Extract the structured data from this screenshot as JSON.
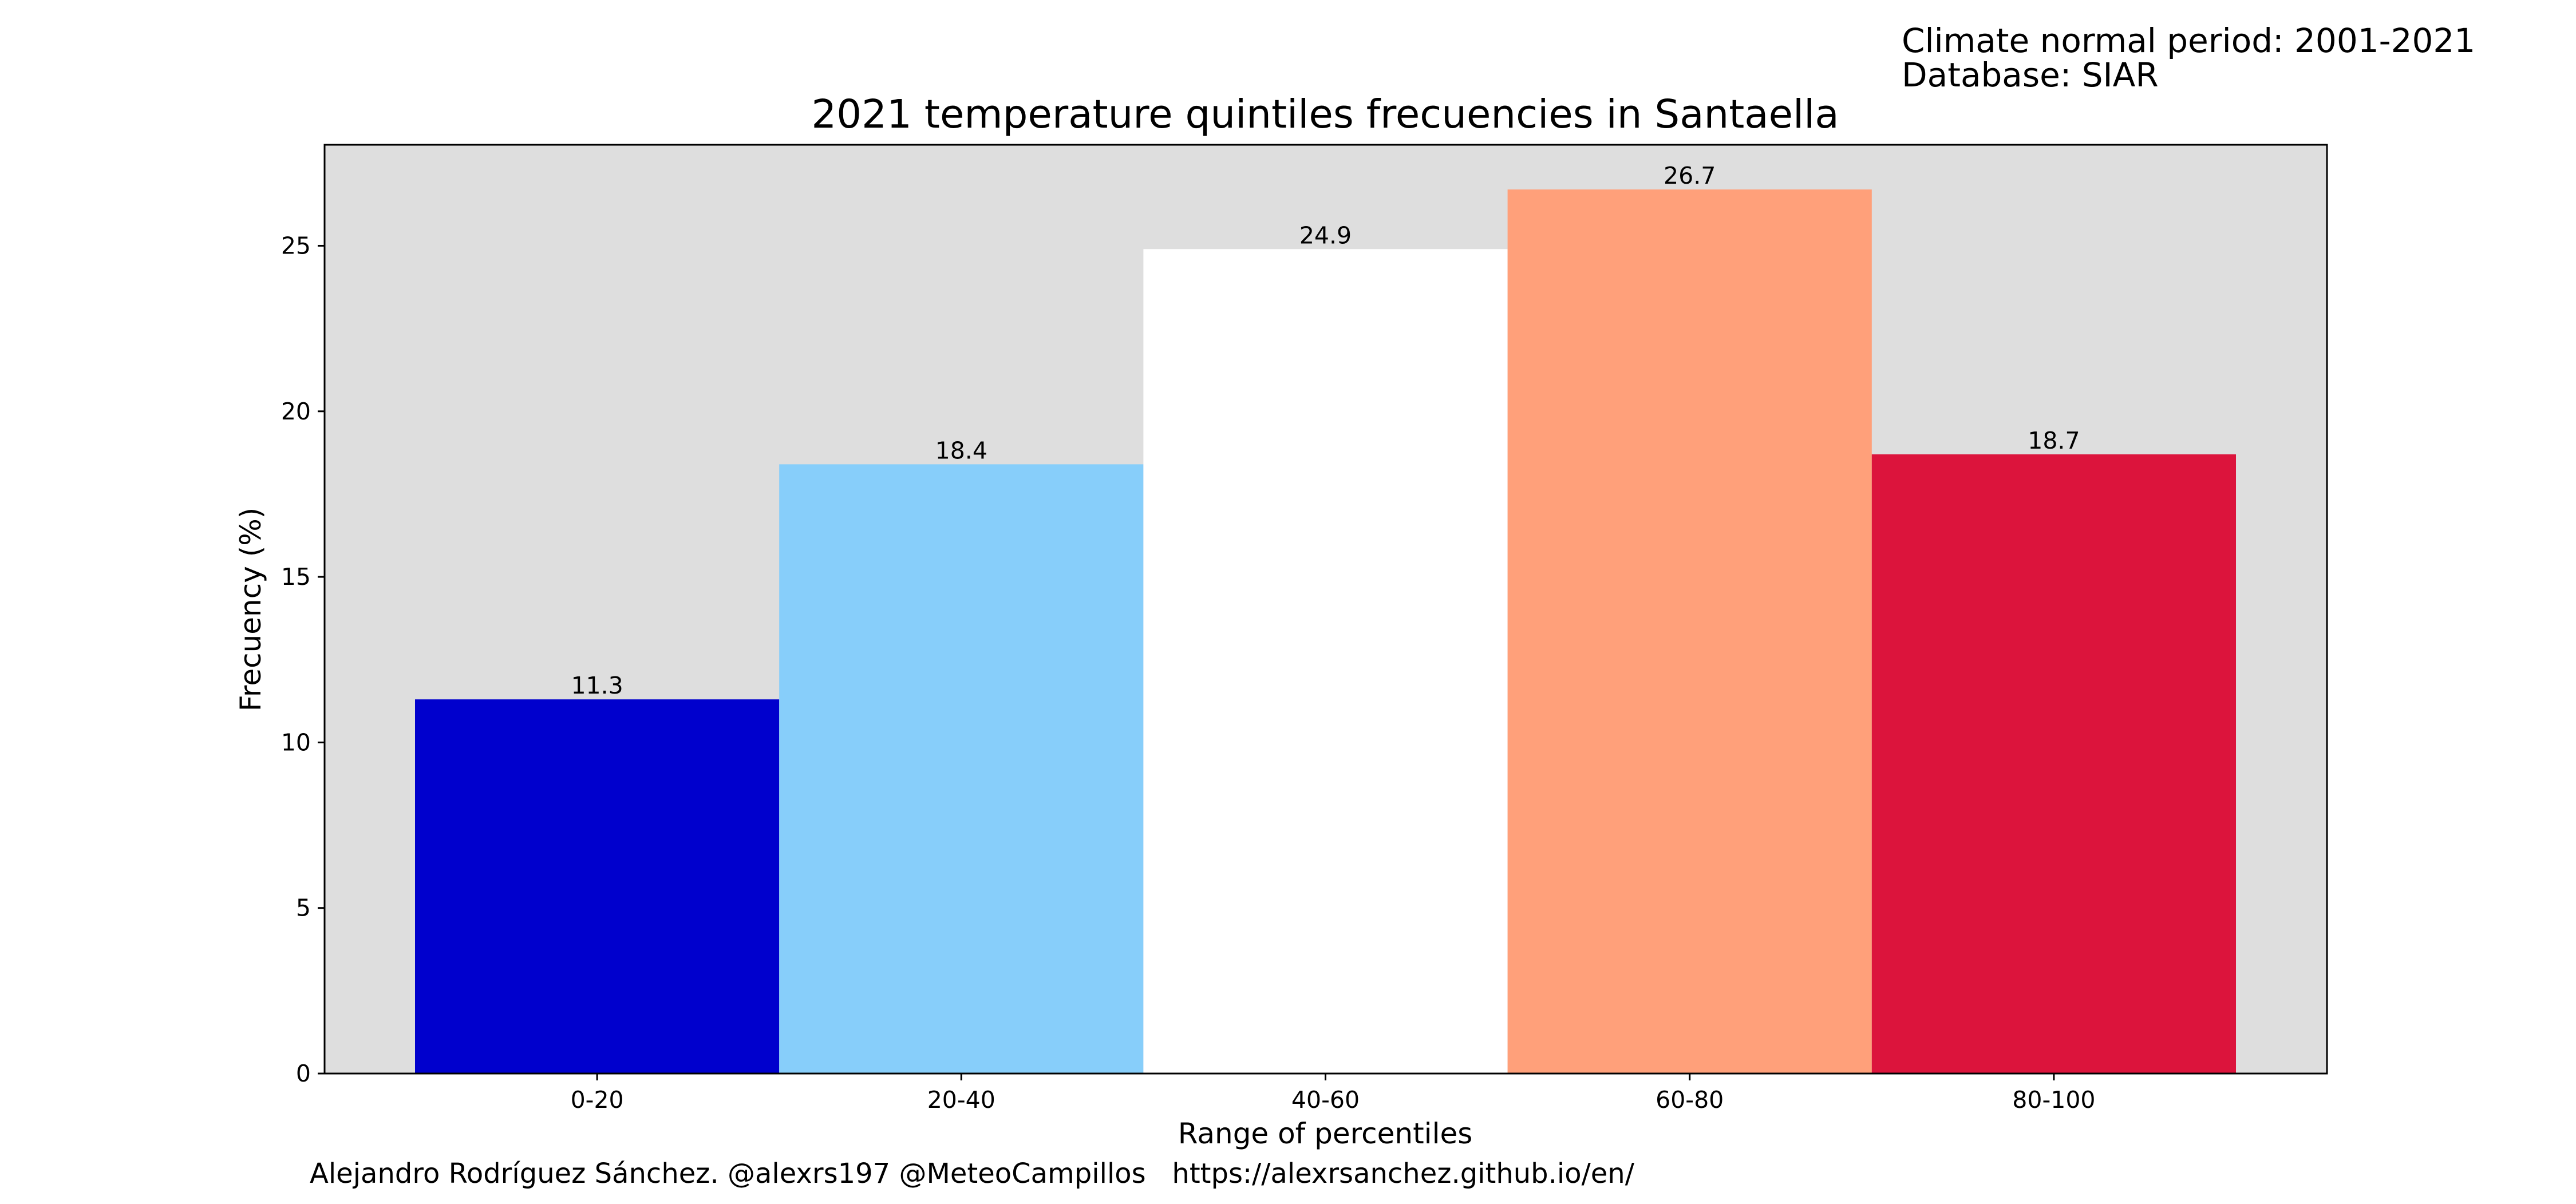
{
  "header": {
    "note_line1": "Climate normal period: 2001-2021",
    "note_line2": "Database: SIAR"
  },
  "footer": {
    "credit": "Alejandro Rodríguez Sánchez. @alexrs197 @MeteoCampillos   https://alexrsanchez.github.io/en/"
  },
  "chart_data": {
    "type": "bar",
    "title": "2021 temperature quintiles frecuencies in Santaella",
    "xlabel": "Range of percentiles",
    "ylabel": "Frecuency (%)",
    "categories": [
      "0-20",
      "20-40",
      "40-60",
      "60-80",
      "80-100"
    ],
    "values": [
      11.3,
      18.4,
      24.9,
      26.7,
      18.7
    ],
    "value_labels": [
      "11.3",
      "18.4",
      "24.9",
      "26.7",
      "18.7"
    ],
    "bar_colors": [
      "#0000cd",
      "#87cefa",
      "#ffffff",
      "#ffa07a",
      "#dc143c"
    ],
    "ylim": [
      0,
      28.05
    ],
    "yticks": [
      0,
      5,
      10,
      15,
      20,
      25
    ],
    "plot_background": "#dedede",
    "grid": false,
    "legend": "none"
  }
}
